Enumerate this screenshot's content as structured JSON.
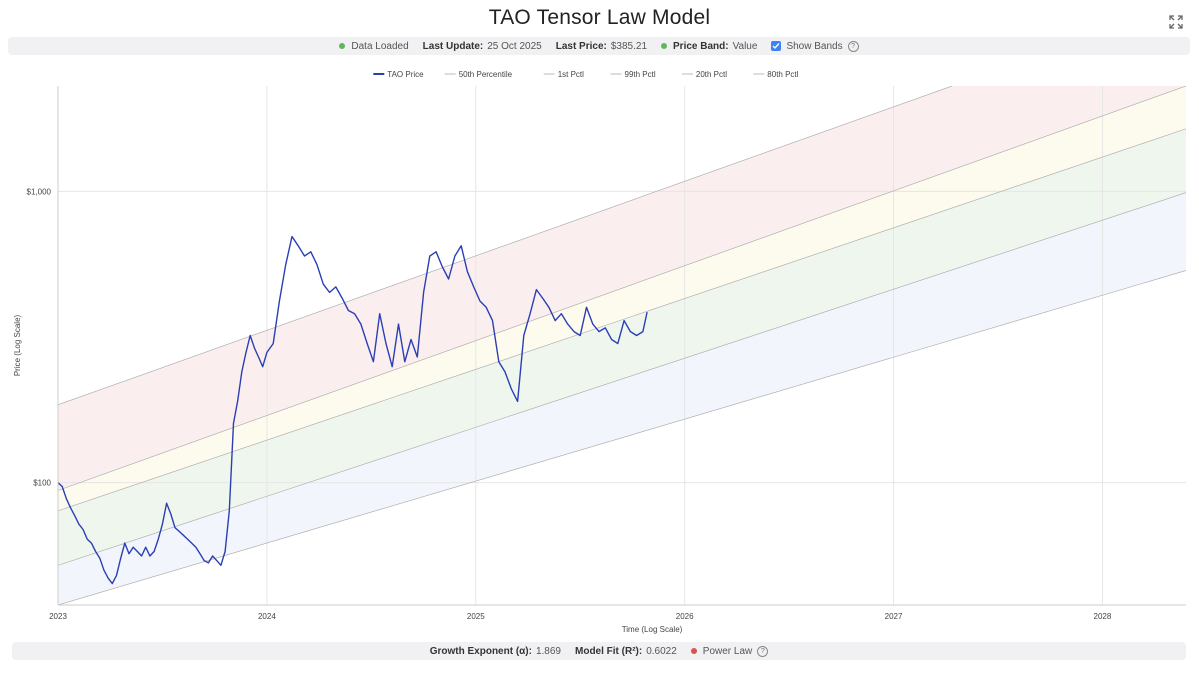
{
  "header": {
    "title": "TAO Tensor Law Model",
    "expand_icon": "expand-icon"
  },
  "status": {
    "loaded_label": "Data Loaded",
    "last_update_label": "Last Update:",
    "last_update_value": "25 Oct 2025",
    "last_price_label": "Last Price:",
    "last_price_value": "$385.21",
    "band_label": "Price Band:",
    "band_value": "Value",
    "show_bands_label": "Show Bands",
    "colors": {
      "loaded": "#5cb85c",
      "band": "#5cb85c"
    }
  },
  "footer": {
    "growth_label": "Growth Exponent (α):",
    "growth_value": "1.869",
    "fit_label": "Model Fit (R²):",
    "fit_value": "0.6022",
    "model_label": "Power Law",
    "colors": {
      "model": "#d9534f"
    }
  },
  "chart_data": {
    "type": "line",
    "title": "TAO Tensor Law Model",
    "xlabel": "Time (Log Scale)",
    "ylabel": "Price (Log Scale)",
    "y_scale": "log",
    "x_scale": "log",
    "ylim": [
      38,
      2300
    ],
    "xlim": [
      2023.0,
      2028.4
    ],
    "x_ticks": [
      {
        "value": 2023.0,
        "label": "2023"
      },
      {
        "value": 2024.0,
        "label": "2024"
      },
      {
        "value": 2025.0,
        "label": "2025"
      },
      {
        "value": 2026.0,
        "label": "2026"
      },
      {
        "value": 2027.0,
        "label": "2027"
      },
      {
        "value": 2028.0,
        "label": "2028"
      }
    ],
    "y_ticks": [
      {
        "value": 100,
        "label": "$100"
      },
      {
        "value": 1000,
        "label": "$1,000"
      }
    ],
    "legend": {
      "position": "top-center",
      "items": [
        {
          "name": "TAO Price",
          "color": "#2b3fb5"
        },
        {
          "name": "50th Percentile",
          "color": "#cccccc"
        },
        {
          "name": "1st Pctl",
          "color": "#cccccc"
        },
        {
          "name": "99th Pctl",
          "color": "#cccccc"
        },
        {
          "name": "20th Pctl",
          "color": "#cccccc"
        },
        {
          "name": "80th Pctl",
          "color": "#cccccc"
        }
      ]
    },
    "bands": [
      {
        "name": "1st Pctl",
        "start": [
          2023.0,
          38
        ],
        "end": [
          2028.4,
          535
        ]
      },
      {
        "name": "20th Pctl",
        "start": [
          2023.0,
          52
        ],
        "end": [
          2028.4,
          990
        ]
      },
      {
        "name": "50th Percentile",
        "start": [
          2023.0,
          80
        ],
        "end": [
          2028.4,
          1640
        ]
      },
      {
        "name": "80th Pctl",
        "start": [
          2023.0,
          94
        ],
        "end": [
          2028.4,
          2300
        ]
      },
      {
        "name": "99th Pctl",
        "start": [
          2023.0,
          185
        ],
        "end": [
          2027.28,
          2300
        ]
      }
    ],
    "band_colors": [
      "#f2f5fc",
      "#eef6ee",
      "#fdfbee",
      "#fbeeee"
    ],
    "series": [
      {
        "name": "TAO Price",
        "color": "#2b3fb5",
        "x": [
          2023.0,
          2023.02,
          2023.04,
          2023.06,
          2023.08,
          2023.1,
          2023.12,
          2023.14,
          2023.16,
          2023.18,
          2023.2,
          2023.22,
          2023.24,
          2023.26,
          2023.28,
          2023.3,
          2023.32,
          2023.34,
          2023.36,
          2023.38,
          2023.4,
          2023.42,
          2023.44,
          2023.46,
          2023.48,
          2023.5,
          2023.52,
          2023.54,
          2023.56,
          2023.58,
          2023.6,
          2023.62,
          2023.64,
          2023.66,
          2023.68,
          2023.7,
          2023.72,
          2023.74,
          2023.76,
          2023.78,
          2023.8,
          2023.82,
          2023.84,
          2023.86,
          2023.88,
          2023.9,
          2023.92,
          2023.94,
          2023.96,
          2023.98,
          2024.0,
          2024.03,
          2024.06,
          2024.09,
          2024.12,
          2024.15,
          2024.18,
          2024.21,
          2024.24,
          2024.27,
          2024.3,
          2024.33,
          2024.36,
          2024.39,
          2024.42,
          2024.45,
          2024.48,
          2024.51,
          2024.54,
          2024.57,
          2024.6,
          2024.63,
          2024.66,
          2024.69,
          2024.72,
          2024.75,
          2024.78,
          2024.81,
          2024.84,
          2024.87,
          2024.9,
          2024.93,
          2024.96,
          2024.99,
          2025.02,
          2025.05,
          2025.08,
          2025.11,
          2025.14,
          2025.17,
          2025.2,
          2025.23,
          2025.26,
          2025.29,
          2025.32,
          2025.35,
          2025.38,
          2025.41,
          2025.44,
          2025.47,
          2025.5,
          2025.53,
          2025.56,
          2025.59,
          2025.62,
          2025.65,
          2025.68,
          2025.71,
          2025.74,
          2025.77,
          2025.8,
          2025.82
        ],
        "y": [
          100,
          97,
          88,
          82,
          77,
          72,
          69,
          64,
          62,
          58,
          55,
          50,
          47,
          45,
          48,
          55,
          62,
          57,
          60,
          58,
          56,
          60,
          56,
          58,
          64,
          72,
          85,
          78,
          70,
          68,
          66,
          64,
          62,
          60,
          57,
          54,
          53,
          56,
          54,
          52,
          58,
          80,
          160,
          190,
          240,
          280,
          320,
          290,
          270,
          250,
          280,
          300,
          420,
          560,
          700,
          650,
          600,
          620,
          560,
          480,
          450,
          470,
          430,
          390,
          380,
          350,
          300,
          260,
          380,
          300,
          250,
          350,
          260,
          310,
          270,
          450,
          600,
          620,
          550,
          500,
          600,
          650,
          530,
          470,
          420,
          400,
          360,
          260,
          240,
          210,
          190,
          320,
          380,
          460,
          430,
          400,
          360,
          380,
          350,
          330,
          320,
          400,
          350,
          330,
          340,
          310,
          300,
          360,
          330,
          320,
          330,
          385
        ]
      }
    ]
  }
}
